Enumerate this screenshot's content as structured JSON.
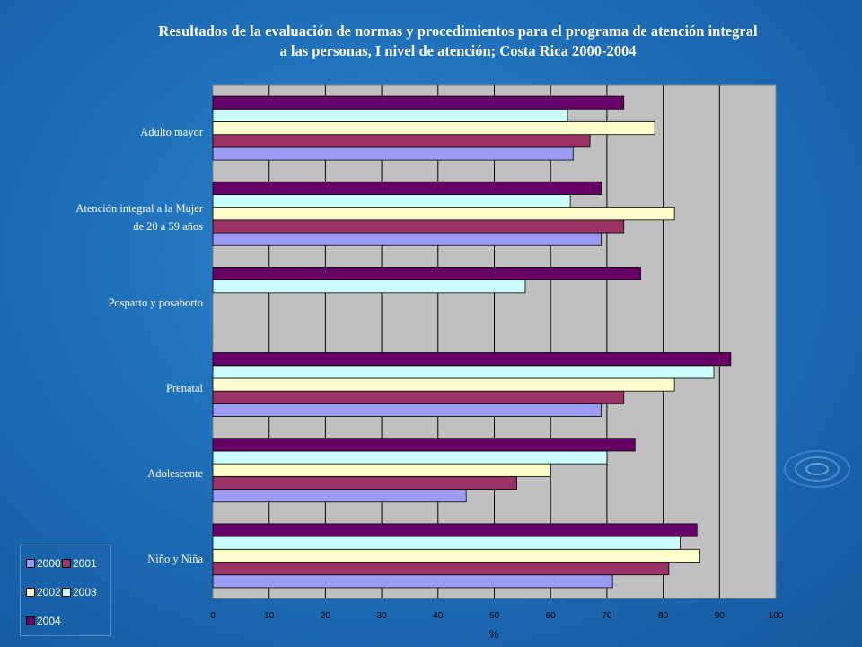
{
  "chart_data": {
    "type": "bar",
    "orientation": "horizontal",
    "title": [
      "Resultados de la evaluación de normas y procedimientos para el programa de atención integral",
      "a las personas, I nivel de atención; Costa Rica 2000-2004"
    ],
    "xlabel": "%",
    "ylabel": "",
    "xlim": [
      0,
      100
    ],
    "xticks": [
      0,
      10,
      20,
      30,
      40,
      50,
      60,
      70,
      80,
      90,
      100
    ],
    "grid": true,
    "legend_position": "bottom-left",
    "categories": [
      [
        "Adulto mayor"
      ],
      [
        "Atención integral a la Mujer",
        "de 20 a 59 años"
      ],
      [
        "Posparto y posaborto"
      ],
      [
        "Prenatal"
      ],
      [
        "Adolescente"
      ],
      [
        "Niño y Niña"
      ]
    ],
    "series": [
      {
        "name": "2000",
        "color": "#9b9bf5",
        "values": [
          64,
          69,
          null,
          69,
          45,
          71
        ]
      },
      {
        "name": "2001",
        "color": "#993366",
        "values": [
          67,
          73,
          null,
          73,
          54,
          81
        ]
      },
      {
        "name": "2002",
        "color": "#ffffcc",
        "values": [
          78.5,
          82,
          null,
          82,
          60,
          86.5
        ]
      },
      {
        "name": "2003",
        "color": "#ccffff",
        "values": [
          63,
          63.5,
          55.5,
          89,
          70,
          83
        ]
      },
      {
        "name": "2004",
        "color": "#660066",
        "values": [
          73,
          69,
          76,
          92,
          75,
          86
        ]
      }
    ]
  }
}
